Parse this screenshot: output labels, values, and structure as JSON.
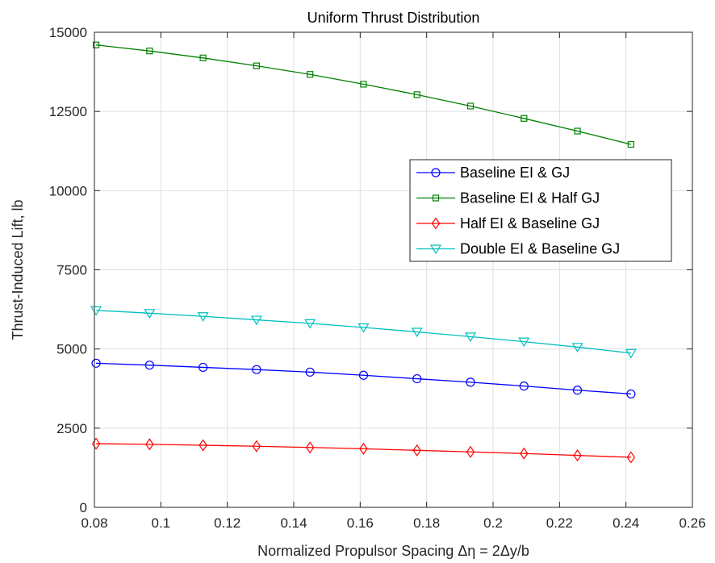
{
  "chart_data": {
    "type": "line",
    "title": "Uniform Thrust Distribution",
    "xlabel": "Normalized Propulsor Spacing  Δη = 2Δy/b",
    "ylabel": "Thrust-Induced Lift, lb",
    "xlim": [
      0.08,
      0.26
    ],
    "ylim": [
      0,
      15000
    ],
    "xticks": [
      "0.08",
      "0.1",
      "0.12",
      "0.14",
      "0.16",
      "0.18",
      "0.2",
      "0.22",
      "0.24",
      "0.26"
    ],
    "yticks": [
      "0",
      "2500",
      "5000",
      "7500",
      "10000",
      "12500",
      "15000"
    ],
    "grid": true,
    "legend_position": "right, upper-middle",
    "x": [
      0.0805,
      0.0966,
      0.1127,
      0.1288,
      0.1449,
      0.161,
      0.1771,
      0.1932,
      0.2093,
      0.2254,
      0.2415
    ],
    "series": [
      {
        "name": "Baseline EI & GJ",
        "color": "#0000ff",
        "marker": "circle",
        "values": [
          4550,
          4490,
          4420,
          4350,
          4270,
          4170,
          4060,
          3950,
          3830,
          3700,
          3580
        ]
      },
      {
        "name": "Baseline EI & Half GJ",
        "color": "#008000",
        "marker": "square",
        "values": [
          14600,
          14410,
          14190,
          13940,
          13670,
          13360,
          13030,
          12670,
          12280,
          11880,
          11460
        ]
      },
      {
        "name": "Half EI & Baseline GJ",
        "color": "#ff0000",
        "marker": "diamond",
        "values": [
          2010,
          1990,
          1960,
          1930,
          1890,
          1850,
          1800,
          1750,
          1700,
          1640,
          1580
        ]
      },
      {
        "name": "Double EI & Baseline GJ",
        "color": "#00bfbf",
        "marker": "triangle-down",
        "values": [
          6220,
          6130,
          6030,
          5920,
          5810,
          5680,
          5540,
          5390,
          5230,
          5060,
          4870
        ]
      }
    ]
  }
}
